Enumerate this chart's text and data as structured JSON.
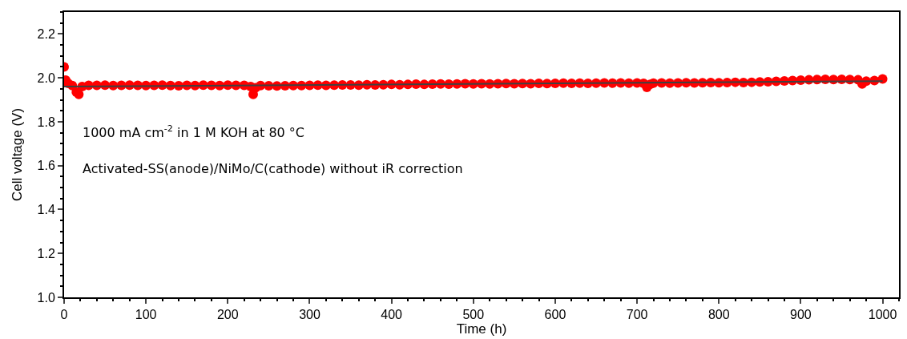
{
  "chart_data": {
    "type": "scatter",
    "xlabel": "Time (h)",
    "ylabel": "Cell voltage (V)",
    "xlim": [
      0,
      1020
    ],
    "xticks": [
      0,
      100,
      200,
      300,
      400,
      500,
      600,
      700,
      800,
      900,
      1000
    ],
    "ylim": [
      1.0,
      2.3
    ],
    "yticks": [
      {
        "value": 1.0,
        "label": "1.0"
      },
      1.2,
      1.4,
      1.6,
      1.8,
      {
        "value": 2.0,
        "label": "2.0"
      },
      2.2
    ],
    "annotations": [
      "1000 mA cm$^{-2}$ in 1 M KOH at 80 °C",
      "Activated-SS(anode)/NiMo/C(cathode) without iR correction"
    ],
    "series": [
      {
        "marker": "circle",
        "color": "#ff0000",
        "x": [
          0,
          2,
          5,
          10,
          15,
          18,
          22,
          30,
          40,
          50,
          60,
          70,
          80,
          90,
          100,
          110,
          120,
          130,
          140,
          150,
          160,
          170,
          180,
          190,
          200,
          210,
          220,
          228,
          231,
          234,
          240,
          250,
          260,
          270,
          280,
          290,
          300,
          310,
          320,
          330,
          340,
          350,
          360,
          370,
          380,
          390,
          400,
          410,
          420,
          430,
          440,
          450,
          460,
          470,
          480,
          490,
          500,
          510,
          520,
          530,
          540,
          550,
          560,
          570,
          580,
          590,
          600,
          610,
          620,
          630,
          640,
          650,
          660,
          670,
          680,
          690,
          700,
          708,
          712,
          716,
          720,
          730,
          740,
          750,
          760,
          770,
          780,
          790,
          800,
          810,
          820,
          830,
          840,
          850,
          860,
          870,
          880,
          890,
          900,
          910,
          920,
          930,
          940,
          950,
          960,
          970,
          975,
          980,
          990,
          1000
        ],
        "values": [
          2.05,
          1.99,
          1.975,
          1.965,
          1.935,
          1.925,
          1.96,
          1.966,
          1.966,
          1.967,
          1.965,
          1.966,
          1.967,
          1.966,
          1.965,
          1.966,
          1.967,
          1.965,
          1.964,
          1.966,
          1.965,
          1.967,
          1.966,
          1.965,
          1.967,
          1.966,
          1.966,
          1.96,
          1.925,
          1.955,
          1.965,
          1.964,
          1.963,
          1.964,
          1.965,
          1.965,
          1.966,
          1.967,
          1.966,
          1.967,
          1.968,
          1.968,
          1.967,
          1.969,
          1.968,
          1.969,
          1.97,
          1.969,
          1.97,
          1.971,
          1.97,
          1.971,
          1.972,
          1.971,
          1.972,
          1.973,
          1.972,
          1.973,
          1.972,
          1.973,
          1.974,
          1.973,
          1.974,
          1.973,
          1.975,
          1.974,
          1.975,
          1.976,
          1.975,
          1.976,
          1.975,
          1.976,
          1.977,
          1.976,
          1.977,
          1.976,
          1.977,
          1.975,
          1.957,
          1.97,
          1.976,
          1.977,
          1.976,
          1.977,
          1.978,
          1.977,
          1.978,
          1.979,
          1.978,
          1.979,
          1.98,
          1.979,
          1.98,
          1.981,
          1.982,
          1.984,
          1.986,
          1.988,
          1.99,
          1.991,
          1.992,
          1.993,
          1.992,
          1.993,
          1.992,
          1.991,
          1.972,
          1.985,
          1.988,
          1.995
        ]
      },
      {
        "type": "line",
        "color": "#404040",
        "line_style": "solid",
        "x": [
          0,
          1000
        ],
        "values": [
          1.96,
          1.985
        ]
      }
    ]
  }
}
